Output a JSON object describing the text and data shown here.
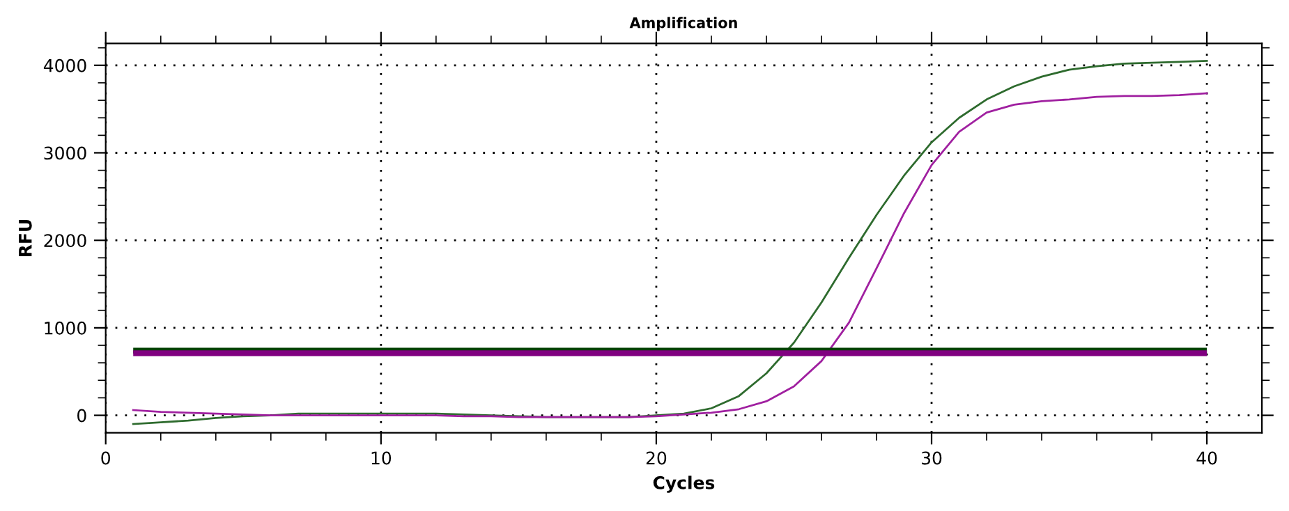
{
  "chart_data": {
    "type": "line",
    "title": "Amplification",
    "xlabel": "Cycles",
    "ylabel": "RFU",
    "x": [
      1,
      2,
      3,
      4,
      5,
      6,
      7,
      8,
      9,
      10,
      11,
      12,
      13,
      14,
      15,
      16,
      17,
      18,
      19,
      20,
      21,
      22,
      23,
      24,
      25,
      26,
      27,
      28,
      29,
      30,
      31,
      32,
      33,
      34,
      35,
      36,
      37,
      38,
      39,
      40
    ],
    "series": [
      {
        "color": "#2e6b2e",
        "values": [
          -100,
          -80,
          -60,
          -30,
          -10,
          0,
          20,
          20,
          20,
          20,
          20,
          20,
          10,
          0,
          -10,
          -20,
          -20,
          -20,
          -20,
          0,
          20,
          80,
          220,
          480,
          830,
          1290,
          1800,
          2290,
          2740,
          3120,
          3400,
          3610,
          3760,
          3870,
          3950,
          3990,
          4020,
          4030,
          4040,
          4050
        ]
      },
      {
        "color": "#a020a0",
        "values": [
          60,
          40,
          30,
          20,
          10,
          0,
          0,
          0,
          0,
          0,
          0,
          0,
          -10,
          -10,
          -20,
          -20,
          -20,
          -20,
          -20,
          -10,
          10,
          30,
          70,
          160,
          330,
          620,
          1060,
          1680,
          2310,
          2860,
          3240,
          3460,
          3550,
          3590,
          3610,
          3640,
          3650,
          3650,
          3660,
          3680
        ]
      }
    ],
    "ref_lines": [
      {
        "axis": "y",
        "value": 740,
        "color": "#004000"
      },
      {
        "axis": "y",
        "value": 710,
        "color": "#800080"
      }
    ],
    "xlim": [
      0,
      42
    ],
    "ylim": [
      -200,
      4250
    ],
    "xticks": [
      0,
      {
        "value": 2,
        "label": null
      },
      {
        "value": 4,
        "label": null
      },
      {
        "value": 6,
        "label": null
      },
      {
        "value": 8,
        "label": null
      },
      10,
      {
        "value": 12,
        "label": null
      },
      {
        "value": 14,
        "label": null
      },
      {
        "value": 16,
        "label": null
      },
      {
        "value": 18,
        "label": null
      },
      20,
      {
        "value": 22,
        "label": null
      },
      {
        "value": 24,
        "label": null
      },
      {
        "value": 26,
        "label": null
      },
      {
        "value": 28,
        "label": null
      },
      30,
      {
        "value": 32,
        "label": null
      },
      {
        "value": 34,
        "label": null
      },
      {
        "value": 36,
        "label": null
      },
      {
        "value": 38,
        "label": null
      },
      40
    ],
    "yticks": [
      0,
      {
        "value": 200,
        "label": null
      },
      {
        "value": 400,
        "label": null
      },
      {
        "value": 600,
        "label": null
      },
      {
        "value": 800,
        "label": null
      },
      1000,
      {
        "value": 1200,
        "label": null
      },
      {
        "value": 1400,
        "label": null
      },
      {
        "value": 1600,
        "label": null
      },
      {
        "value": 1800,
        "label": null
      },
      2000,
      {
        "value": 2200,
        "label": null
      },
      {
        "value": 2400,
        "label": null
      },
      {
        "value": 2600,
        "label": null
      },
      {
        "value": 2800,
        "label": null
      },
      3000,
      {
        "value": 3200,
        "label": null
      },
      {
        "value": 3400,
        "label": null
      },
      {
        "value": 3600,
        "label": null
      },
      {
        "value": 3800,
        "label": null
      },
      4000,
      {
        "value": 4200,
        "label": null
      }
    ],
    "grid": true,
    "line_style": "solid",
    "marker": "none"
  }
}
